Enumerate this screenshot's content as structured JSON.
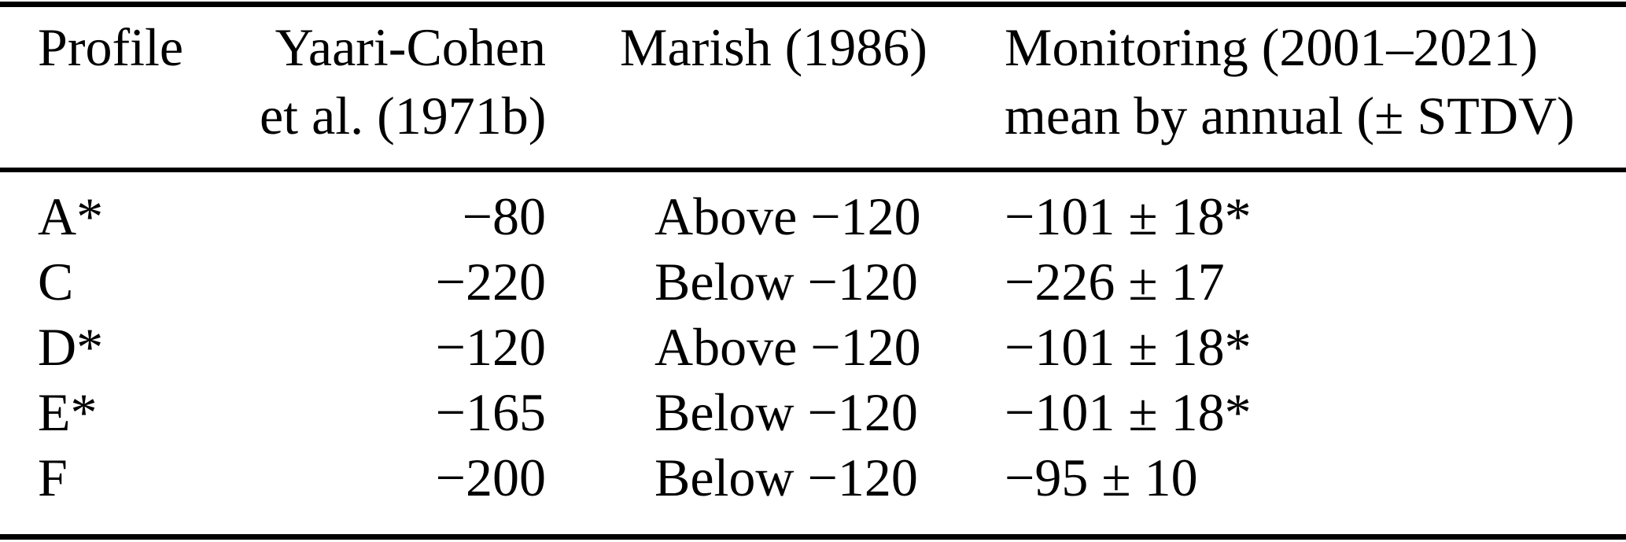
{
  "table": {
    "colors": {
      "text": "#000000",
      "rule": "#000000",
      "background": "#ffffff"
    },
    "columns": [
      {
        "id": "profile",
        "header_lines": [
          "Profile",
          ""
        ]
      },
      {
        "id": "yaari",
        "header_lines": [
          "Yaari-Cohen",
          "et al. (1971b)"
        ]
      },
      {
        "id": "marish",
        "header_lines": [
          "Marish (1986)",
          ""
        ]
      },
      {
        "id": "monitoring",
        "header_lines": [
          "Monitoring (2001–2021)",
          "mean by annual (± STDV)"
        ]
      }
    ],
    "rows": [
      {
        "profile": "A*",
        "yaari": "−80",
        "marish": "Above −120",
        "monitoring": "−101 ± 18*"
      },
      {
        "profile": "C",
        "yaari": "−220",
        "marish": "Below −120",
        "monitoring": "−226 ± 17"
      },
      {
        "profile": "D*",
        "yaari": "−120",
        "marish": "Above −120",
        "monitoring": "−101 ± 18*"
      },
      {
        "profile": "E*",
        "yaari": "−165",
        "marish": "Below −120",
        "monitoring": "−101 ± 18*"
      },
      {
        "profile": "F",
        "yaari": "−200",
        "marish": "Below −120",
        "monitoring": "−95 ± 10"
      }
    ]
  }
}
